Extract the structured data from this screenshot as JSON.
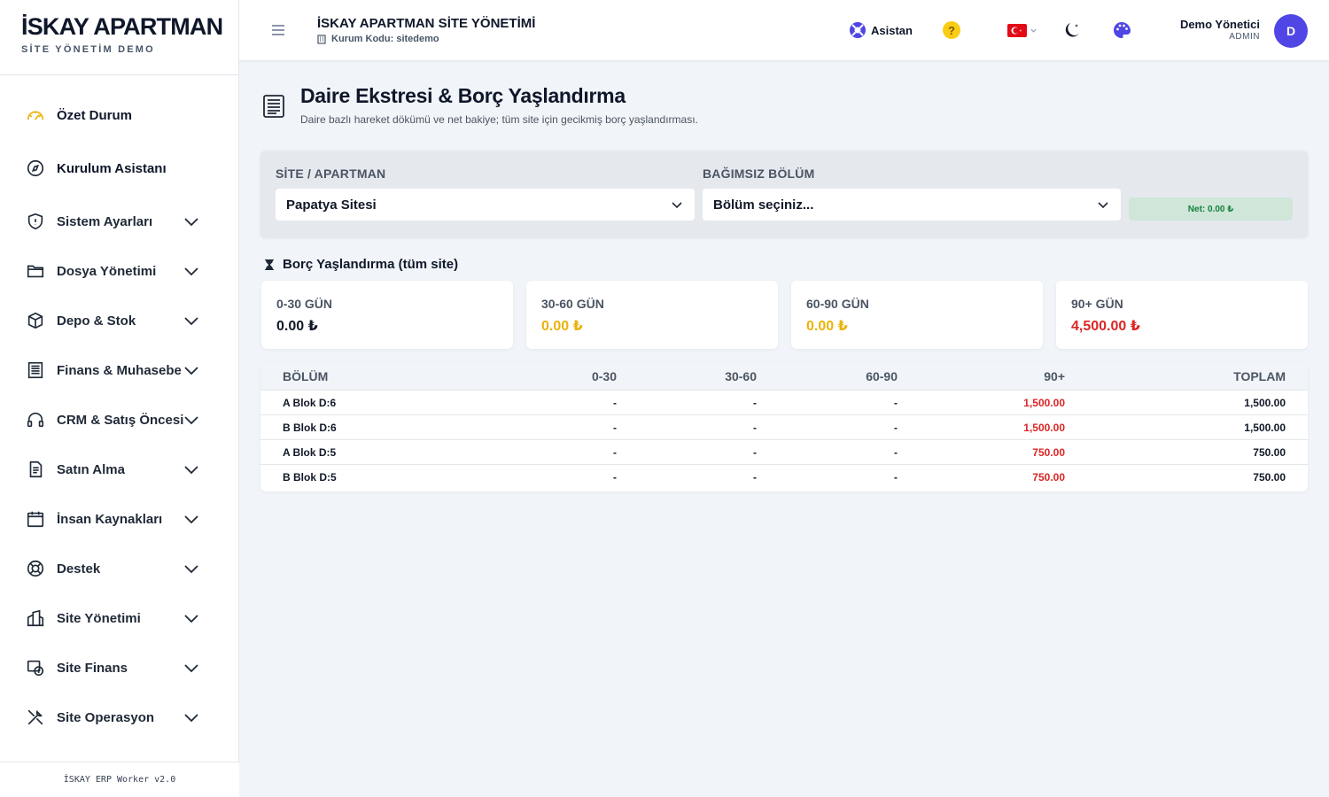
{
  "brand": {
    "title": "İSKAY APARTMAN",
    "subtitle": "SİTE YÖNETİM DEMO"
  },
  "sidebar": {
    "items": [
      {
        "label": "Özet Durum",
        "icon": "speedometer-icon",
        "expandable": false
      },
      {
        "label": "Kurulum Asistanı",
        "icon": "compass-icon",
        "expandable": false
      },
      {
        "label": "Sistem Ayarları",
        "icon": "shield-icon",
        "expandable": true
      },
      {
        "label": "Dosya Yönetimi",
        "icon": "folder-icon",
        "expandable": true
      },
      {
        "label": "Depo & Stok",
        "icon": "box-icon",
        "expandable": true
      },
      {
        "label": "Finans & Muhasebe",
        "icon": "ledger-icon",
        "expandable": true
      },
      {
        "label": "CRM & Satış Öncesi",
        "icon": "headset-icon",
        "expandable": true
      },
      {
        "label": "Satın Alma",
        "icon": "document-icon",
        "expandable": true
      },
      {
        "label": "İnsan Kaynakları",
        "icon": "calendar-icon",
        "expandable": true
      },
      {
        "label": "Destek",
        "icon": "lifebuoy-icon",
        "expandable": true
      },
      {
        "label": "Site Yönetimi",
        "icon": "buildings-icon",
        "expandable": true
      },
      {
        "label": "Site Finans",
        "icon": "money-icon",
        "expandable": true
      },
      {
        "label": "Site Operasyon",
        "icon": "tools-icon",
        "expandable": true
      }
    ],
    "footer": "İSKAY ERP Worker v2.0"
  },
  "header": {
    "org_title": "İSKAY APARTMAN SİTE YÖNETİMİ",
    "org_code": "Kurum Kodu: sitedemo",
    "assistant_label": "Asistan",
    "help_label": "?",
    "user_name": "Demo Yönetici",
    "user_role": "ADMIN",
    "avatar_initial": "D"
  },
  "page": {
    "title": "Daire Ekstresi & Borç Yaşlandırma",
    "subtitle": "Daire bazlı hareket dökümü ve net bakiye; tüm site için gecikmiş borç yaşlandırması."
  },
  "filters": {
    "site_label": "SİTE / APARTMAN",
    "site_value": "Papatya Sitesi",
    "unit_label": "BAĞIMSIZ BÖLÜM",
    "unit_value": "Bölüm seçiniz...",
    "net_label": "Net: 0.00 ₺"
  },
  "aging": {
    "title": "Borç Yaşlandırma (tüm site)",
    "cards": [
      {
        "label": "0-30 GÜN",
        "value": "0.00 ₺",
        "color": "#111827"
      },
      {
        "label": "30-60 GÜN",
        "value": "0.00 ₺",
        "color": "#eab308"
      },
      {
        "label": "60-90 GÜN",
        "value": "0.00 ₺",
        "color": "#eab308"
      },
      {
        "label": "90+ GÜN",
        "value": "4,500.00 ₺",
        "color": "#dc2626"
      }
    ]
  },
  "table": {
    "headers": [
      "BÖLÜM",
      "0-30",
      "30-60",
      "60-90",
      "90+",
      "TOPLAM"
    ],
    "rows": [
      [
        "A Blok D:6",
        "-",
        "-",
        "-",
        "1,500.00",
        "1,500.00"
      ],
      [
        "B Blok D:6",
        "-",
        "-",
        "-",
        "1,500.00",
        "1,500.00"
      ],
      [
        "A Blok D:5",
        "-",
        "-",
        "-",
        "750.00",
        "750.00"
      ],
      [
        "B Blok D:5",
        "-",
        "-",
        "-",
        "750.00",
        "750.00"
      ]
    ]
  },
  "colors": {
    "accent": "#4f46e5",
    "danger": "#dc2626",
    "warning": "#eab308",
    "success": "#15803d"
  }
}
